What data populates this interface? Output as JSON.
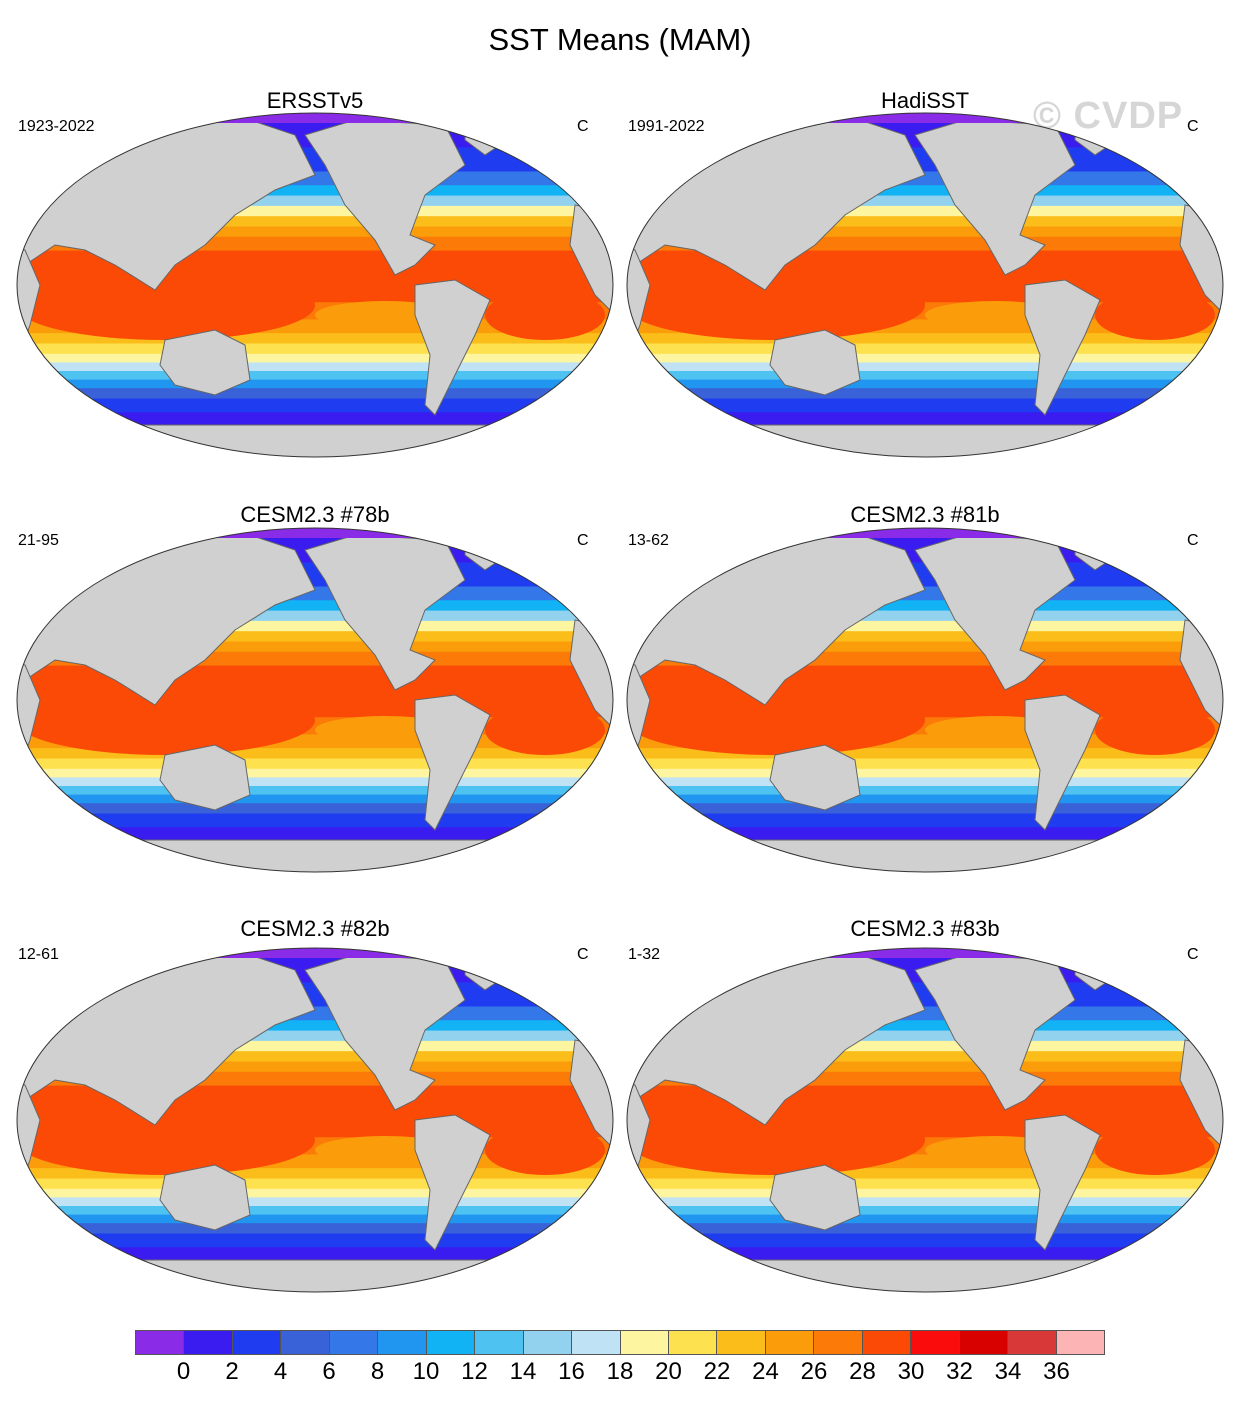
{
  "title": "SST Means (MAM)",
  "watermark": "© CVDP",
  "units": "C",
  "panels": [
    {
      "title": "ERSSTv5",
      "period": "1923-2022",
      "units": "C"
    },
    {
      "title": "HadiSST",
      "period": "1991-2022",
      "units": "C"
    },
    {
      "title": "CESM2.3 #78b",
      "period": "21-95",
      "units": "C"
    },
    {
      "title": "CESM2.3 #81b",
      "period": "13-62",
      "units": "C"
    },
    {
      "title": "CESM2.3 #82b",
      "period": "12-61",
      "units": "C"
    },
    {
      "title": "CESM2.3 #83b",
      "period": "1-32",
      "units": "C"
    }
  ],
  "colorbar": {
    "colors": [
      "#8a2be8",
      "#3a1cf0",
      "#1f3cf0",
      "#3a62d8",
      "#3377e8",
      "#2196f0",
      "#11b3f5",
      "#4ec2f0",
      "#93d2ef",
      "#bfe3f5",
      "#fdf5a0",
      "#fde14f",
      "#fbbd1a",
      "#fb9c0a",
      "#fb7a08",
      "#fb4a05",
      "#fb0c0c",
      "#d90000",
      "#d83838",
      "#fcb4b4"
    ],
    "tick_labels": [
      "0",
      "2",
      "4",
      "6",
      "8",
      "10",
      "12",
      "14",
      "16",
      "18",
      "20",
      "22",
      "24",
      "26",
      "28",
      "30",
      "32",
      "34",
      "36"
    ]
  },
  "colors": {
    "land": "#d0d0d0",
    "coast": "#666666"
  }
}
